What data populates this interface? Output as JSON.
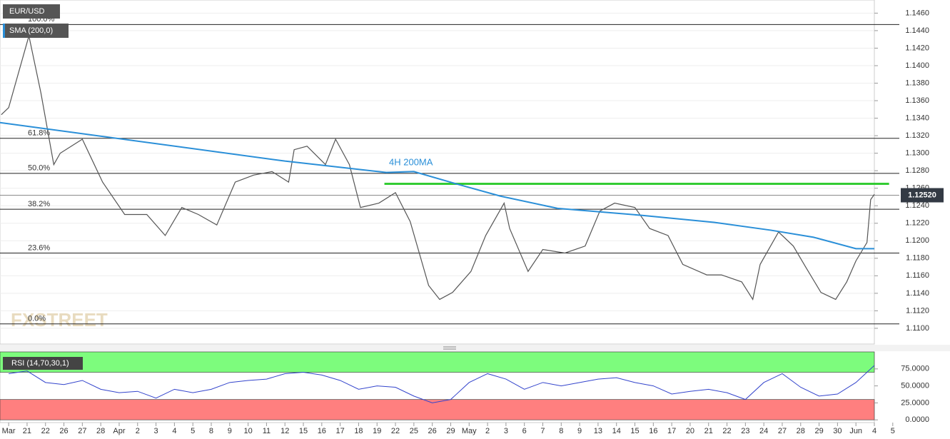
{
  "chart_data": [
    {
      "type": "line",
      "series": [
        {
          "name": "EUR/USD",
          "color": "#555555",
          "x": [
            -0.4,
            0,
            1.1,
            1.75,
            2.45,
            2.8,
            4,
            5.1,
            6.3,
            7.5,
            8.5,
            9.4,
            10.3,
            11.3,
            12.3,
            13.3,
            14.3,
            15.2,
            15.5,
            16.2,
            17.2,
            17.75,
            18.5,
            19.1,
            20.1,
            21,
            21.8,
            22.8,
            23.4,
            24.1,
            25.1,
            25.9,
            26.9,
            27.2,
            28.2,
            29,
            30.2,
            31.3,
            32.1,
            32.9,
            34,
            34.8,
            35.8,
            36.6,
            37.9,
            38.7,
            39.8,
            40.4,
            40.8,
            41.8,
            42.6,
            43.3,
            44.1,
            44.9,
            45.5,
            46,
            46.6,
            46.8,
            47
          ],
          "values": [
            1.1344,
            1.1352,
            1.1434,
            1.1369,
            1.1287,
            1.13,
            1.1316,
            1.1267,
            1.123,
            1.123,
            1.1206,
            1.1238,
            1.123,
            1.1218,
            1.1267,
            1.1275,
            1.1279,
            1.1267,
            1.1304,
            1.1308,
            1.1287,
            1.1316,
            1.1287,
            1.1238,
            1.1243,
            1.1255,
            1.1222,
            1.1149,
            1.1133,
            1.1141,
            1.1165,
            1.1206,
            1.1243,
            1.1214,
            1.1165,
            1.119,
            1.1186,
            1.1194,
            1.1234,
            1.1243,
            1.1238,
            1.1214,
            1.1206,
            1.1173,
            1.1161,
            1.1161,
            1.1153,
            1.1133,
            1.1173,
            1.121,
            1.1194,
            1.1169,
            1.1141,
            1.1133,
            1.1153,
            1.1177,
            1.1198,
            1.1247,
            1.1253
          ]
        },
        {
          "name": "SMA (200,0)",
          "color": "#2a8fd8",
          "x": [
            -0.47,
            15,
            20.5,
            22,
            24.3,
            26.7,
            29.8,
            34.4,
            38.3,
            41.4,
            43.7,
            46,
            47
          ],
          "values": [
            1.1335,
            1.1291,
            1.1278,
            1.1279,
            1.1265,
            1.1251,
            1.1237,
            1.1229,
            1.1221,
            1.1212,
            1.1204,
            1.1191,
            1.1191
          ]
        }
      ],
      "fib_levels": [
        {
          "label": "100.0%",
          "value": 1.1447
        },
        {
          "label": "61.8%",
          "value": 1.1317
        },
        {
          "label": "50.0%",
          "value": 1.1277
        },
        {
          "label": "38.2%",
          "value": 1.1236
        },
        {
          "label": "23.6%",
          "value": 1.1186
        },
        {
          "label": "0.0%",
          "value": 1.1105
        }
      ],
      "resistance": {
        "value": 1.1265,
        "x": [
          20.4,
          47.8
        ],
        "color": "#33cc33"
      },
      "annotation": "4H 200MA",
      "last_price": {
        "value": 1.1252,
        "label": "1.12520"
      },
      "watermark": "FXSTREET",
      "ylim": [
        1.1082,
        1.1475
      ],
      "yticks": [
        {
          "value": 1.11,
          "label": "1.1100"
        },
        {
          "value": 1.112,
          "label": "1.1120"
        },
        {
          "value": 1.114,
          "label": "1.1140"
        },
        {
          "value": 1.116,
          "label": "1.1160"
        },
        {
          "value": 1.118,
          "label": "1.1180"
        },
        {
          "value": 1.12,
          "label": "1.1200"
        },
        {
          "value": 1.122,
          "label": "1.1220"
        },
        {
          "value": 1.124,
          "label": "1.1240"
        },
        {
          "value": 1.126,
          "label": "1.1260"
        },
        {
          "value": 1.128,
          "label": "1.1280"
        },
        {
          "value": 1.13,
          "label": "1.1300"
        },
        {
          "value": 1.132,
          "label": "1.1320"
        },
        {
          "value": 1.134,
          "label": "1.1340"
        },
        {
          "value": 1.136,
          "label": "1.1360"
        },
        {
          "value": 1.138,
          "label": "1.1380"
        },
        {
          "value": 1.14,
          "label": "1.1400"
        },
        {
          "value": 1.142,
          "label": "1.1420"
        },
        {
          "value": 1.144,
          "label": "1.1440"
        },
        {
          "value": 1.146,
          "label": "1.1460"
        }
      ],
      "xlim": [
        -0.47,
        47
      ],
      "xticks": [
        {
          "value": 0,
          "label": "Mar"
        },
        {
          "value": 1,
          "label": "21"
        },
        {
          "value": 2,
          "label": "22"
        },
        {
          "value": 3,
          "label": "26"
        },
        {
          "value": 4,
          "label": "27"
        },
        {
          "value": 5,
          "label": "28"
        },
        {
          "value": 6,
          "label": "Apr"
        },
        {
          "value": 7,
          "label": "2"
        },
        {
          "value": 8,
          "label": "3"
        },
        {
          "value": 9,
          "label": "4"
        },
        {
          "value": 10,
          "label": "5"
        },
        {
          "value": 11,
          "label": "8"
        },
        {
          "value": 12,
          "label": "9"
        },
        {
          "value": 13,
          "label": "10"
        },
        {
          "value": 14,
          "label": "11"
        },
        {
          "value": 15,
          "label": "12"
        },
        {
          "value": 16,
          "label": "15"
        },
        {
          "value": 17,
          "label": "16"
        },
        {
          "value": 18,
          "label": "17"
        },
        {
          "value": 19,
          "label": "18"
        },
        {
          "value": 20,
          "label": "19"
        },
        {
          "value": 21,
          "label": "22"
        },
        {
          "value": 22,
          "label": "25"
        },
        {
          "value": 23,
          "label": "26"
        },
        {
          "value": 24,
          "label": "29"
        },
        {
          "value": 25,
          "label": "May"
        },
        {
          "value": 26,
          "label": "2"
        },
        {
          "value": 27,
          "label": "3"
        },
        {
          "value": 28,
          "label": "6"
        },
        {
          "value": 29,
          "label": "7"
        },
        {
          "value": 30,
          "label": "8"
        },
        {
          "value": 31,
          "label": "9"
        },
        {
          "value": 32,
          "label": "13"
        },
        {
          "value": 33,
          "label": "14"
        },
        {
          "value": 34,
          "label": "15"
        },
        {
          "value": 35,
          "label": "16"
        },
        {
          "value": 36,
          "label": "17"
        },
        {
          "value": 37,
          "label": "20"
        },
        {
          "value": 38,
          "label": "21"
        },
        {
          "value": 39,
          "label": "22"
        },
        {
          "value": 40,
          "label": "23"
        },
        {
          "value": 41,
          "label": "24"
        },
        {
          "value": 42,
          "label": "27"
        },
        {
          "value": 43,
          "label": "28"
        },
        {
          "value": 44,
          "label": "29"
        },
        {
          "value": 45,
          "label": "30"
        },
        {
          "value": 46,
          "label": "Jun"
        },
        {
          "value": 47,
          "label": "4"
        },
        {
          "value": 48,
          "label": "5"
        }
      ],
      "grid": true
    },
    {
      "type": "rsi",
      "series": [
        {
          "name": "RSI (14,70,30,1)",
          "color": "#3344cc",
          "x": [
            0,
            1,
            2,
            3,
            4,
            5,
            6,
            7,
            8,
            9,
            10,
            11,
            12,
            13,
            14,
            15,
            16,
            17,
            18,
            19,
            20,
            21,
            22,
            23,
            24,
            25,
            26,
            27,
            28,
            29,
            30,
            31,
            32,
            33,
            34,
            35,
            36,
            37,
            38,
            39,
            40,
            41,
            42,
            43,
            44,
            45,
            46,
            47
          ],
          "values": [
            68,
            72,
            55,
            52,
            58,
            45,
            40,
            42,
            32,
            45,
            40,
            45,
            55,
            58,
            60,
            68,
            70,
            66,
            58,
            45,
            50,
            48,
            35,
            25,
            30,
            55,
            68,
            60,
            45,
            55,
            50,
            55,
            60,
            62,
            55,
            50,
            38,
            42,
            45,
            40,
            30,
            55,
            68,
            48,
            35,
            38,
            55,
            80
          ]
        }
      ],
      "zones": [
        {
          "from": 70,
          "to": 100,
          "color": "#7dfc7d"
        },
        {
          "from": 0,
          "to": 30,
          "color": "#ff7f7f"
        }
      ],
      "xlim": [
        -0.47,
        47
      ],
      "ylim": [
        -4,
        100
      ],
      "yticks": [
        {
          "value": 0,
          "label": "0.0000"
        },
        {
          "value": 25,
          "label": "25.0000"
        },
        {
          "value": 50,
          "label": "50.0000"
        },
        {
          "value": 75,
          "label": "75.0000"
        }
      ]
    }
  ]
}
